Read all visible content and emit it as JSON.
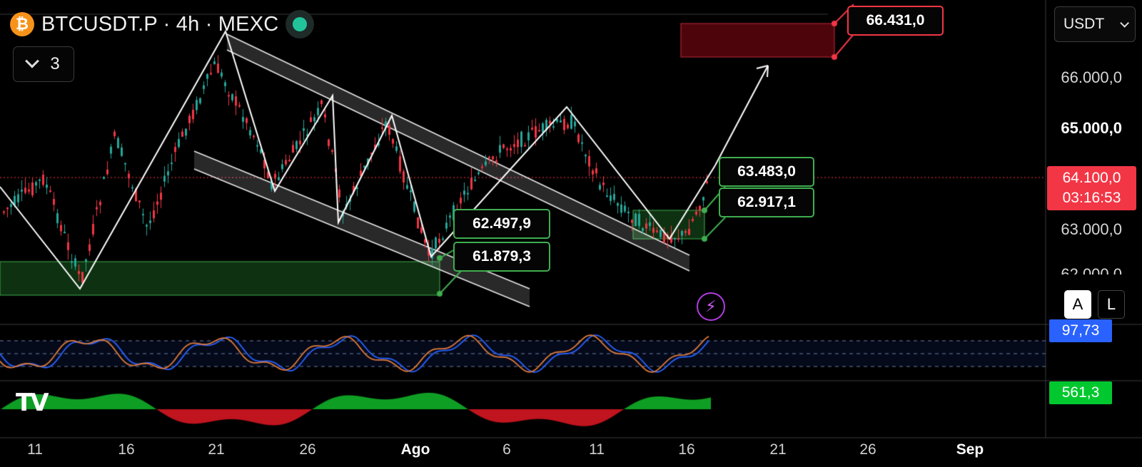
{
  "header": {
    "symbol_title": "BTCUSDT.P · 4h · MEXC",
    "coin_icon": "bitcoin-icon",
    "coin_glyph": "₿",
    "status_icon": "market-status-dot-icon",
    "indicators_count": "3"
  },
  "currency_selector": {
    "value": "USDT"
  },
  "price_axis": {
    "ticks": [
      "66.000,0",
      "65.000,0",
      "63.000,0",
      "62.000,0"
    ],
    "bold_tick": "65.000,0",
    "current_price": "64.100,0",
    "countdown": "03:16:53"
  },
  "oscillator": {
    "value": "97,73",
    "color": "#2962ff"
  },
  "momentum": {
    "value": "561,3",
    "color": "#00c82e"
  },
  "axis_buttons": {
    "auto": "A",
    "log": "L"
  },
  "x_axis": {
    "labels": [
      "11",
      "16",
      "21",
      "26",
      "Ago",
      "6",
      "11",
      "16",
      "21",
      "26",
      "Sep"
    ],
    "bold_labels": [
      "Ago",
      "Sep"
    ]
  },
  "annotations": {
    "target_price": "66.431,0",
    "high_right": "63.483,0",
    "low_right": "62.917,1",
    "high_left": "62.497,9",
    "low_left": "61.879,3"
  },
  "alert_icon": "lightning-icon",
  "alert_glyph": "⚡",
  "colors": {
    "up": "#26a69a",
    "down": "#f23645",
    "accent_green": "#3fae4f",
    "target_red": "#f23645"
  }
}
